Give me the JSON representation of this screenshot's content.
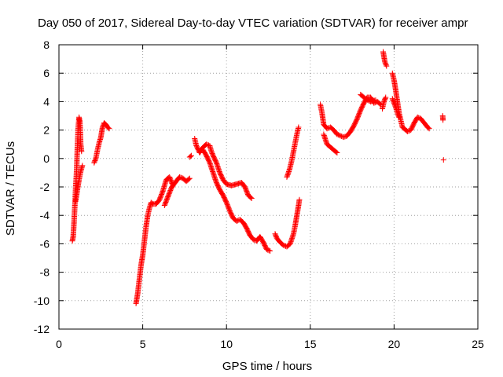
{
  "chart_data": {
    "type": "scatter",
    "title": "Day 050 of 2017, Sidereal Day-to-day VTEC variation (SDTVAR) for receiver ampr",
    "xlabel": "GPS time / hours",
    "ylabel": "SDTVAR / TECUs",
    "xlim": [
      0,
      25
    ],
    "ylim": [
      -12,
      8
    ],
    "x_ticks": [
      "0",
      "5",
      "10",
      "15",
      "20",
      "25"
    ],
    "y_ticks": [
      "-12",
      "-10",
      "-8",
      "-6",
      "-4",
      "-2",
      "0",
      "2",
      "4",
      "6",
      "8"
    ],
    "grid": true,
    "legend": "none",
    "marker": "plus",
    "color": "#ff0000",
    "series": [
      {
        "segments": [
          [
            [
              0.8,
              -5.8
            ],
            [
              0.85,
              -5.5
            ],
            [
              0.9,
              -4.5
            ],
            [
              0.95,
              -3.3
            ],
            [
              1.0,
              -2.0
            ],
            [
              1.05,
              -1.0
            ],
            [
              1.1,
              0.8
            ],
            [
              1.15,
              2.2
            ],
            [
              1.2,
              2.9
            ],
            [
              1.25,
              2.6
            ],
            [
              1.3,
              1.0
            ],
            [
              1.35,
              0.5
            ]
          ],
          [
            [
              1.0,
              -3.0
            ],
            [
              1.1,
              -2.2
            ],
            [
              1.2,
              -1.5
            ],
            [
              1.3,
              -0.9
            ],
            [
              1.4,
              -0.5
            ]
          ],
          [
            [
              2.1,
              -0.3
            ],
            [
              2.2,
              0.0
            ],
            [
              2.3,
              0.6
            ],
            [
              2.4,
              1.1
            ],
            [
              2.5,
              1.5
            ],
            [
              2.6,
              2.2
            ],
            [
              2.7,
              2.5
            ],
            [
              2.8,
              2.4
            ],
            [
              2.9,
              2.2
            ],
            [
              3.0,
              2.1
            ]
          ],
          [
            [
              4.6,
              -10.2
            ],
            [
              4.7,
              -9.5
            ],
            [
              4.8,
              -8.5
            ],
            [
              4.9,
              -7.5
            ],
            [
              5.0,
              -6.8
            ],
            [
              5.1,
              -5.8
            ],
            [
              5.2,
              -4.8
            ],
            [
              5.3,
              -4.0
            ],
            [
              5.4,
              -3.5
            ],
            [
              5.5,
              -3.1
            ],
            [
              5.6,
              -3.2
            ],
            [
              5.8,
              -3.2
            ],
            [
              6.0,
              -2.9
            ],
            [
              6.2,
              -2.3
            ],
            [
              6.4,
              -1.5
            ],
            [
              6.6,
              -1.3
            ],
            [
              6.8,
              -1.9
            ],
            [
              7.0,
              -1.6
            ],
            [
              7.2,
              -1.3
            ],
            [
              7.4,
              -1.4
            ],
            [
              7.6,
              -1.6
            ],
            [
              7.8,
              -1.4
            ]
          ],
          [
            [
              6.3,
              -3.3
            ],
            [
              6.4,
              -3.0
            ],
            [
              6.5,
              -2.7
            ],
            [
              6.6,
              -2.4
            ],
            [
              6.7,
              -2.1
            ],
            [
              6.8,
              -1.9
            ]
          ],
          [
            [
              7.8,
              0.1
            ],
            [
              7.9,
              0.2
            ]
          ],
          [
            [
              8.1,
              1.4
            ],
            [
              8.2,
              0.9
            ],
            [
              8.4,
              0.4
            ],
            [
              8.6,
              0.8
            ],
            [
              8.8,
              1.0
            ],
            [
              9.0,
              0.9
            ],
            [
              9.1,
              0.5
            ],
            [
              9.2,
              0.2
            ],
            [
              9.4,
              -0.3
            ],
            [
              9.6,
              -1.0
            ],
            [
              9.8,
              -1.5
            ],
            [
              10.0,
              -1.8
            ],
            [
              10.3,
              -1.9
            ],
            [
              10.6,
              -1.8
            ],
            [
              10.9,
              -1.7
            ],
            [
              11.1,
              -2.0
            ],
            [
              11.3,
              -2.6
            ],
            [
              11.5,
              -2.8
            ]
          ],
          [
            [
              8.6,
              0.6
            ],
            [
              8.8,
              0.2
            ],
            [
              9.0,
              -0.3
            ],
            [
              9.2,
              -1.0
            ],
            [
              9.4,
              -1.7
            ],
            [
              9.6,
              -2.2
            ],
            [
              9.8,
              -2.6
            ],
            [
              10.0,
              -3.1
            ],
            [
              10.2,
              -3.7
            ],
            [
              10.4,
              -4.2
            ],
            [
              10.6,
              -4.4
            ],
            [
              10.8,
              -4.3
            ],
            [
              11.0,
              -4.5
            ],
            [
              11.2,
              -4.9
            ],
            [
              11.4,
              -5.4
            ],
            [
              11.6,
              -5.7
            ],
            [
              11.8,
              -5.8
            ],
            [
              12.0,
              -5.5
            ],
            [
              12.2,
              -5.9
            ],
            [
              12.4,
              -6.4
            ],
            [
              12.6,
              -6.5
            ]
          ],
          [
            [
              12.9,
              -5.3
            ],
            [
              13.0,
              -5.6
            ],
            [
              13.2,
              -5.9
            ],
            [
              13.4,
              -6.1
            ],
            [
              13.6,
              -6.2
            ],
            [
              13.8,
              -6.0
            ],
            [
              14.0,
              -5.3
            ],
            [
              14.1,
              -4.7
            ],
            [
              14.2,
              -4.0
            ],
            [
              14.3,
              -3.3
            ],
            [
              14.35,
              -2.9
            ]
          ],
          [
            [
              13.6,
              -1.3
            ],
            [
              13.7,
              -1.0
            ],
            [
              13.8,
              -0.6
            ],
            [
              13.9,
              -0.1
            ],
            [
              14.0,
              0.5
            ],
            [
              14.1,
              1.1
            ],
            [
              14.2,
              1.7
            ],
            [
              14.3,
              2.2
            ]
          ],
          [
            [
              15.6,
              3.8
            ],
            [
              15.7,
              3.2
            ],
            [
              15.8,
              2.4
            ],
            [
              16.0,
              2.1
            ],
            [
              16.2,
              2.2
            ],
            [
              16.4,
              2.0
            ],
            [
              16.6,
              1.7
            ],
            [
              16.8,
              1.6
            ],
            [
              17.0,
              1.5
            ],
            [
              17.2,
              1.6
            ],
            [
              17.4,
              1.9
            ],
            [
              17.6,
              2.3
            ],
            [
              17.8,
              2.8
            ],
            [
              18.0,
              3.4
            ],
            [
              18.2,
              3.9
            ],
            [
              18.4,
              4.3
            ],
            [
              18.6,
              4.3
            ],
            [
              18.8,
              3.9
            ],
            [
              19.0,
              4.0
            ],
            [
              19.2,
              3.8
            ]
          ],
          [
            [
              15.8,
              1.7
            ],
            [
              16.0,
              1.0
            ],
            [
              16.2,
              0.8
            ],
            [
              16.4,
              0.6
            ],
            [
              16.6,
              0.4
            ]
          ],
          [
            [
              18.0,
              4.5
            ],
            [
              18.3,
              4.2
            ],
            [
              18.6,
              4.0
            ],
            [
              18.9,
              4.1
            ]
          ],
          [
            [
              19.3,
              3.5
            ],
            [
              19.4,
              4.0
            ],
            [
              19.5,
              4.3
            ]
          ],
          [
            [
              19.35,
              7.5
            ],
            [
              19.45,
              6.8
            ],
            [
              19.55,
              6.5
            ]
          ],
          [
            [
              19.9,
              6.0
            ],
            [
              20.0,
              5.5
            ],
            [
              20.1,
              4.8
            ],
            [
              20.2,
              4.0
            ],
            [
              20.3,
              3.2
            ],
            [
              20.4,
              2.7
            ],
            [
              20.5,
              2.2
            ],
            [
              20.6,
              2.1
            ],
            [
              20.7,
              2.0
            ],
            [
              20.8,
              1.9
            ],
            [
              21.0,
              2.0
            ],
            [
              21.2,
              2.5
            ],
            [
              21.4,
              2.9
            ],
            [
              21.6,
              2.8
            ],
            [
              21.8,
              2.5
            ],
            [
              22.0,
              2.2
            ],
            [
              22.1,
              2.1
            ]
          ],
          [
            [
              19.9,
              4.2
            ],
            [
              20.0,
              3.9
            ],
            [
              20.1,
              3.6
            ],
            [
              20.2,
              3.2
            ],
            [
              20.3,
              2.9
            ]
          ],
          [
            [
              22.9,
              3.0
            ],
            [
              22.92,
              2.7
            ]
          ],
          [
            [
              22.95,
              -0.1
            ]
          ]
        ]
      }
    ]
  }
}
